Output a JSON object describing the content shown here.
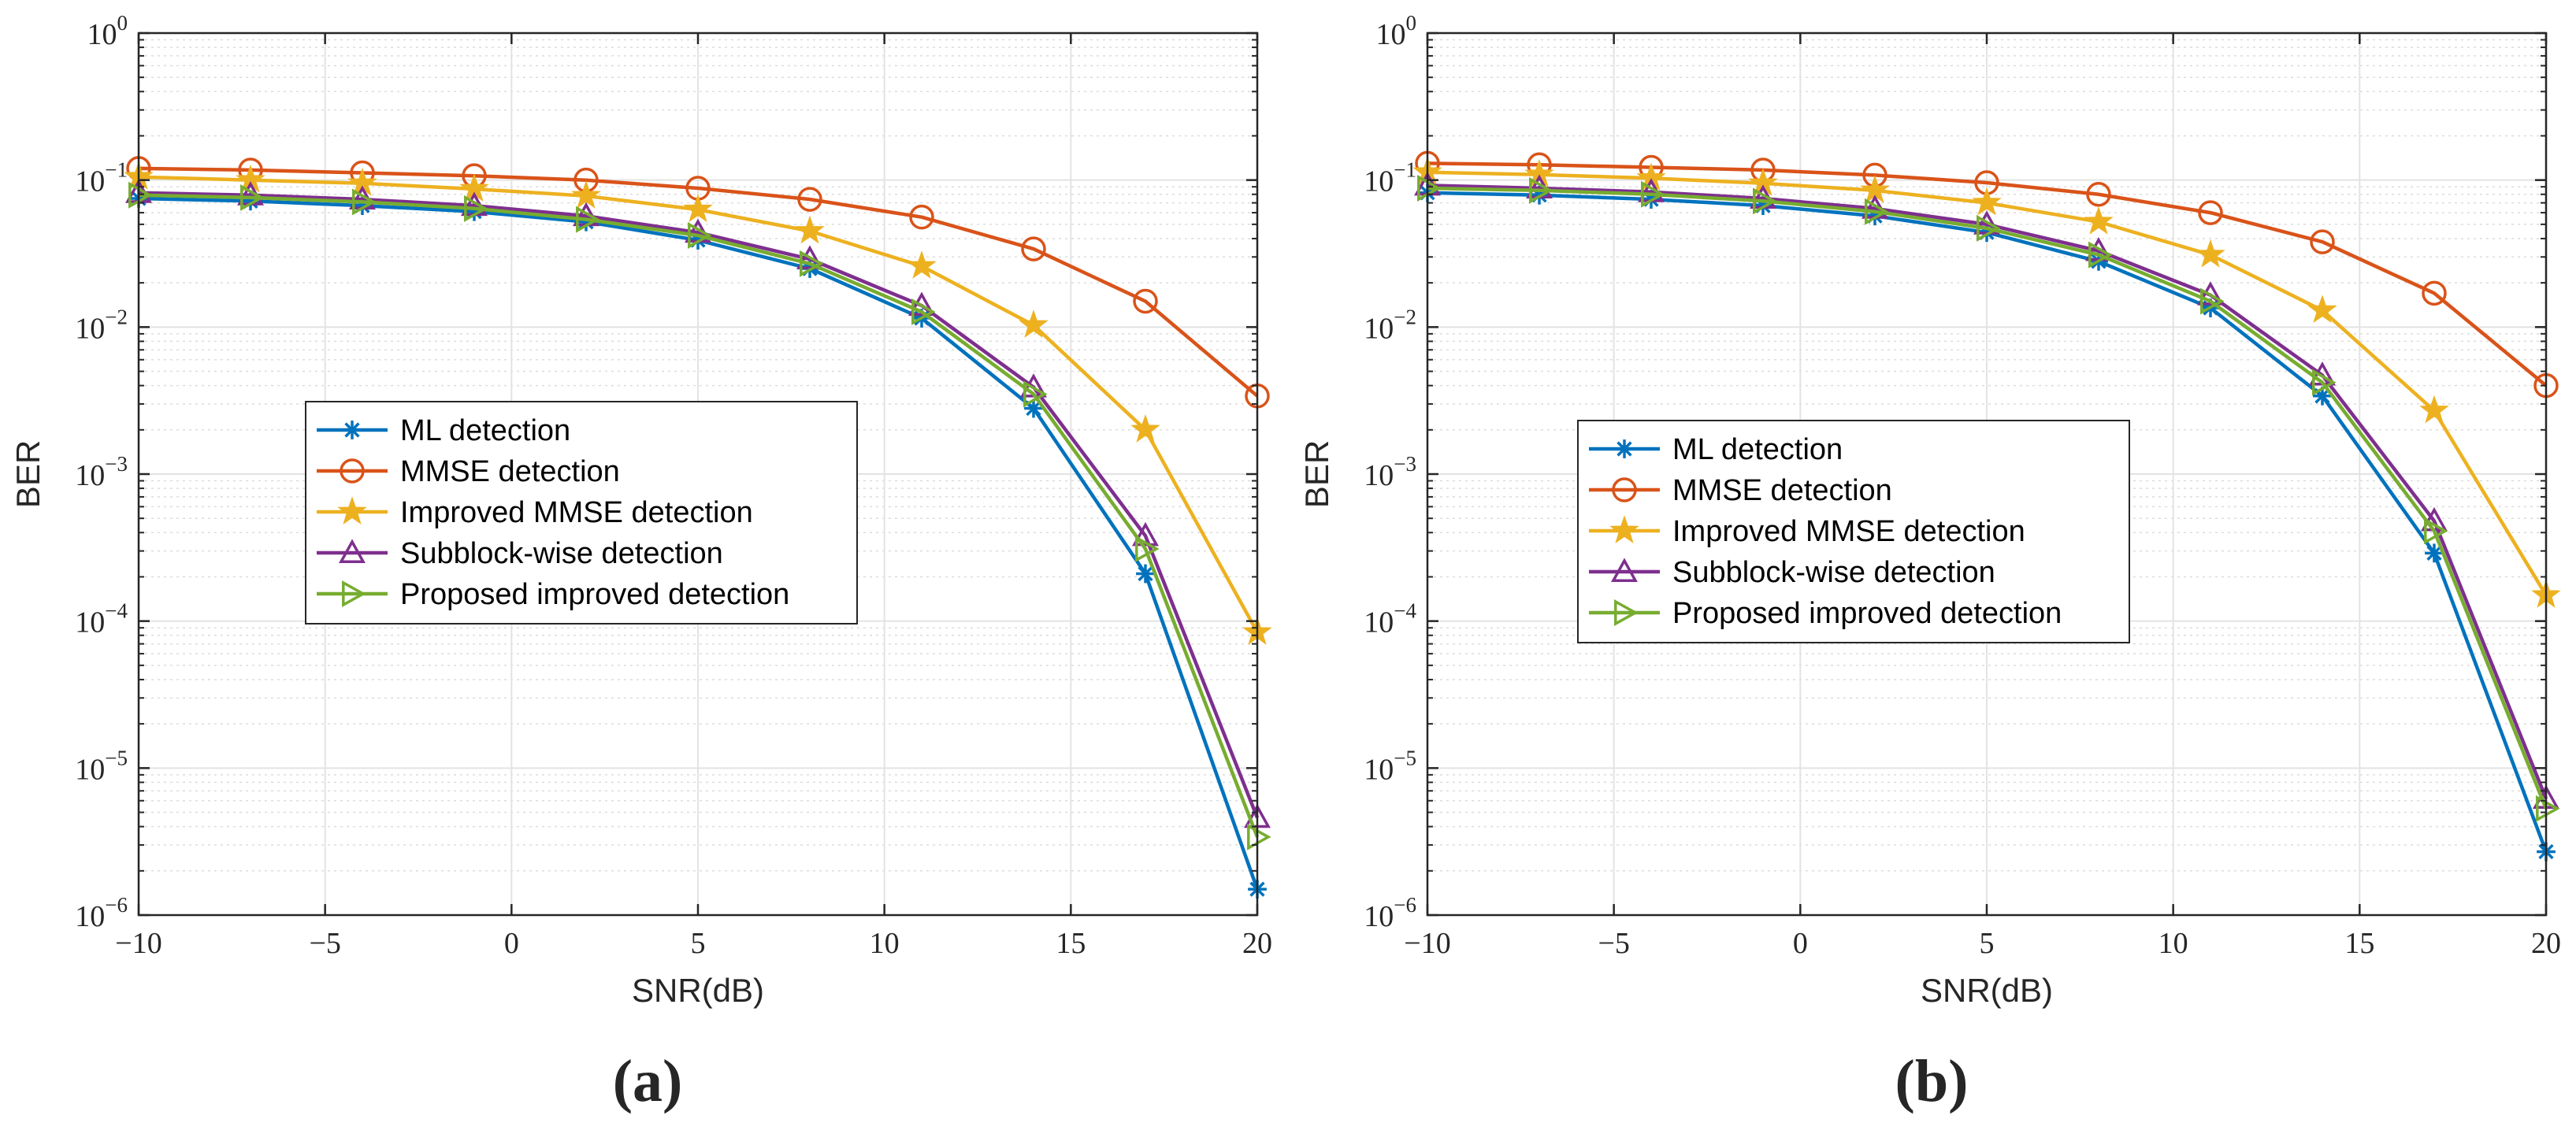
{
  "chart_data": [
    {
      "type": "line",
      "caption": "(a)",
      "xlabel": "SNR(dB)",
      "ylabel": "BER",
      "yscale": "log",
      "xlim": [
        -10,
        20
      ],
      "ylim": [
        1e-06,
        1
      ],
      "grid": true,
      "legend_position": "center-left",
      "xticks": [
        -10,
        -5,
        0,
        5,
        10,
        15,
        20
      ],
      "xtick_labels": [
        "−10",
        "−5",
        "0",
        "5",
        "10",
        "15",
        "20"
      ],
      "ytick_labels": [
        {
          "base": "10",
          "exp": "−6"
        },
        {
          "base": "10",
          "exp": "−5"
        },
        {
          "base": "10",
          "exp": "−4"
        },
        {
          "base": "10",
          "exp": "−3"
        },
        {
          "base": "10",
          "exp": "−2"
        },
        {
          "base": "10",
          "exp": "−1"
        },
        {
          "base": "10",
          "exp": "0"
        }
      ],
      "x": [
        -10,
        -7,
        -4,
        -1,
        2,
        5,
        8,
        11,
        14,
        17,
        20
      ],
      "series": [
        {
          "name": "ML detection",
          "color": "#0072BD",
          "marker": "asterisk",
          "values": [
            0.075,
            0.072,
            0.067,
            0.061,
            0.052,
            0.039,
            0.025,
            0.0115,
            0.0028,
            0.00021,
            1.5e-06
          ]
        },
        {
          "name": "MMSE detection",
          "color": "#D95319",
          "marker": "circle",
          "values": [
            0.12,
            0.117,
            0.112,
            0.107,
            0.1,
            0.088,
            0.074,
            0.056,
            0.034,
            0.015,
            0.0034
          ]
        },
        {
          "name": "Improved MMSE detection",
          "color": "#EDB120",
          "marker": "star",
          "values": [
            0.105,
            0.1,
            0.095,
            0.087,
            0.078,
            0.063,
            0.045,
            0.026,
            0.0103,
            0.002,
            8.4e-05
          ]
        },
        {
          "name": "Subblock-wise detection",
          "color": "#7E2F8E",
          "marker": "triangle-up",
          "values": [
            0.082,
            0.079,
            0.074,
            0.067,
            0.057,
            0.044,
            0.029,
            0.014,
            0.0039,
            0.00038,
            4.6e-06
          ]
        },
        {
          "name": "Proposed improved detection",
          "color": "#77AC30",
          "marker": "triangle-right",
          "values": [
            0.079,
            0.076,
            0.071,
            0.064,
            0.054,
            0.042,
            0.027,
            0.0127,
            0.0035,
            0.00031,
            3.4e-06
          ]
        }
      ]
    },
    {
      "type": "line",
      "caption": "(b)",
      "xlabel": "SNR(dB)",
      "ylabel": "BER",
      "yscale": "log",
      "xlim": [
        -10,
        20
      ],
      "ylim": [
        1e-06,
        1
      ],
      "grid": true,
      "legend_position": "center-left",
      "xticks": [
        -10,
        -5,
        0,
        5,
        10,
        15,
        20
      ],
      "xtick_labels": [
        "−10",
        "−5",
        "0",
        "5",
        "10",
        "15",
        "20"
      ],
      "ytick_labels": [
        {
          "base": "10",
          "exp": "−6"
        },
        {
          "base": "10",
          "exp": "−5"
        },
        {
          "base": "10",
          "exp": "−4"
        },
        {
          "base": "10",
          "exp": "−3"
        },
        {
          "base": "10",
          "exp": "−2"
        },
        {
          "base": "10",
          "exp": "−1"
        },
        {
          "base": "10",
          "exp": "0"
        }
      ],
      "x": [
        -10,
        -7,
        -4,
        -1,
        2,
        5,
        8,
        11,
        14,
        17,
        20
      ],
      "series": [
        {
          "name": "ML detection",
          "color": "#0072BD",
          "marker": "asterisk",
          "values": [
            0.082,
            0.079,
            0.074,
            0.067,
            0.057,
            0.044,
            0.028,
            0.0135,
            0.0034,
            0.00029,
            2.7e-06
          ]
        },
        {
          "name": "MMSE detection",
          "color": "#D95319",
          "marker": "circle",
          "values": [
            0.13,
            0.127,
            0.122,
            0.117,
            0.108,
            0.096,
            0.08,
            0.06,
            0.038,
            0.017,
            0.004
          ]
        },
        {
          "name": "Improved MMSE detection",
          "color": "#EDB120",
          "marker": "star",
          "values": [
            0.113,
            0.109,
            0.103,
            0.095,
            0.085,
            0.07,
            0.052,
            0.031,
            0.013,
            0.0027,
            0.00015
          ]
        },
        {
          "name": "Subblock-wise detection",
          "color": "#7E2F8E",
          "marker": "triangle-up",
          "values": [
            0.092,
            0.088,
            0.083,
            0.075,
            0.064,
            0.05,
            0.033,
            0.0165,
            0.0047,
            0.00048,
            6.2e-06
          ]
        },
        {
          "name": "Proposed improved detection",
          "color": "#77AC30",
          "marker": "triangle-right",
          "values": [
            0.088,
            0.085,
            0.08,
            0.072,
            0.061,
            0.047,
            0.031,
            0.015,
            0.0042,
            0.00041,
            5.3e-06
          ]
        }
      ]
    }
  ]
}
